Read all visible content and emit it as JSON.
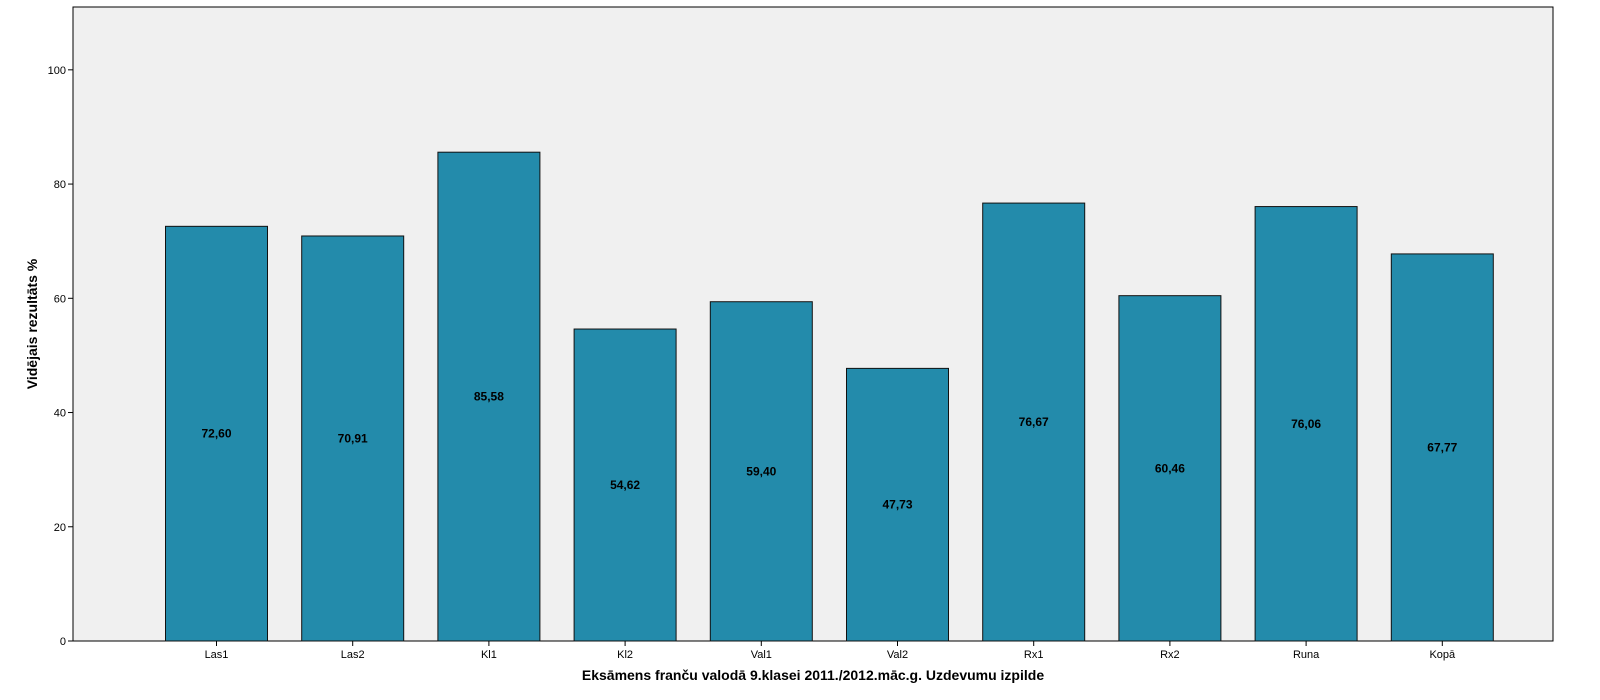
{
  "chart_data": {
    "type": "bar",
    "categories": [
      "Las1",
      "Las2",
      "Kl1",
      "Kl2",
      "Val1",
      "Val2",
      "Rx1",
      "Rx2",
      "Runa",
      "Kopā"
    ],
    "values": [
      72.6,
      70.91,
      85.58,
      54.62,
      59.4,
      47.73,
      76.67,
      60.46,
      76.06,
      67.77
    ],
    "data_labels": [
      "72,60",
      "70,91",
      "85,58",
      "54,62",
      "59,40",
      "47,73",
      "76,67",
      "60,46",
      "76,06",
      "67,77"
    ],
    "xlabel": "Eksāmens franču valodā 9.klasei 2011./2012.māc.g. Uzdevumu izpilde",
    "ylabel": "Vidējais rezultāts %",
    "ylim": [
      0,
      111
    ],
    "yticks": [
      0,
      20,
      40,
      60,
      80,
      100
    ],
    "grid": false,
    "legend": "none",
    "colors": {
      "bar_fill": "#238bab",
      "bar_stroke": "#111111",
      "plot_background": "#f0f0f0",
      "axis": "#000000"
    }
  }
}
